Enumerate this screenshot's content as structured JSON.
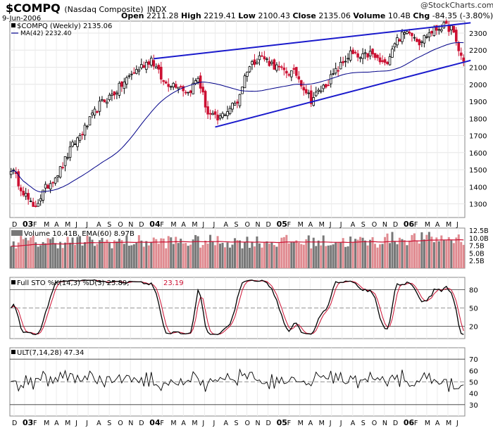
{
  "header": {
    "symbol": "$COMPQ",
    "name": "(Nasdaq Composite)",
    "exchange": "INDX",
    "date": "9-Jun-2006",
    "open_label": "Open",
    "open": "2211.28",
    "high_label": "High",
    "high": "2219.41",
    "low_label": "Low",
    "low": "2100.43",
    "close_label": "Close",
    "close": "2135.06",
    "volume_label": "Volume",
    "volume": "10.4B",
    "chg_label": "Chg",
    "chg": "-84.35 (-3.80%)",
    "brand": "@StockCharts.com"
  },
  "chart_data": [
    {
      "type": "candlestick",
      "legend": [
        "$COMPQ (Weekly) 2135.06",
        "MA(42) 2232.40"
      ],
      "y_ticks": [
        1300,
        1400,
        1500,
        1600,
        1700,
        1800,
        1900,
        2000,
        2100,
        2200,
        2300
      ],
      "ylim": [
        1220,
        2370
      ],
      "x_labels": [
        "D",
        "03",
        "F",
        "M",
        "A",
        "M",
        "J",
        "J",
        "A",
        "S",
        "O",
        "N",
        "D",
        "04",
        "F",
        "M",
        "A",
        "M",
        "J",
        "J",
        "A",
        "S",
        "O",
        "N",
        "D",
        "05",
        "F",
        "M",
        "A",
        "M",
        "J",
        "J",
        "A",
        "S",
        "O",
        "N",
        "D",
        "06",
        "F",
        "M",
        "A",
        "M",
        "J"
      ],
      "trendlines": [
        {
          "name": "upper",
          "start": {
            "week": 58,
            "value": 2150
          },
          "end": {
            "week": 184,
            "value": 2360
          }
        },
        {
          "name": "lower",
          "start": {
            "week": 83,
            "value": 1750
          },
          "end": {
            "week": 184,
            "value": 2140
          }
        }
      ],
      "colors": {
        "up": "#000000",
        "down": "#cc1133",
        "ma": "#000088",
        "trend": "#1a1acc"
      }
    },
    {
      "type": "bar",
      "legend": "Volume 10.41B, EMA(60) 8.97B",
      "y_ticks": [
        2.5,
        5.0,
        7.5,
        10.0,
        12.5
      ],
      "y_tick_labels": [
        "2.5B",
        "5.0B",
        "7.5B",
        "10.0B",
        "12.5B"
      ],
      "ylim": [
        0,
        13.2
      ],
      "colors": {
        "up": "#777777",
        "down": "#e08a90",
        "ema": "#cc1133"
      }
    },
    {
      "type": "line",
      "legend": [
        "Full STO %K(14,3) %D(3) 25.89,",
        "23.19"
      ],
      "y_ticks": [
        20,
        50,
        80
      ],
      "ylim": [
        0,
        100
      ],
      "colors": {
        "k": "#000000",
        "d": "#cc1133"
      }
    },
    {
      "type": "line",
      "legend": "ULT(7,14,28) 47.34",
      "y_ticks": [
        30,
        40,
        50,
        60,
        70
      ],
      "ylim": [
        20,
        80
      ],
      "colors": {
        "line": "#000000",
        "fill": "#33aa55"
      }
    }
  ]
}
